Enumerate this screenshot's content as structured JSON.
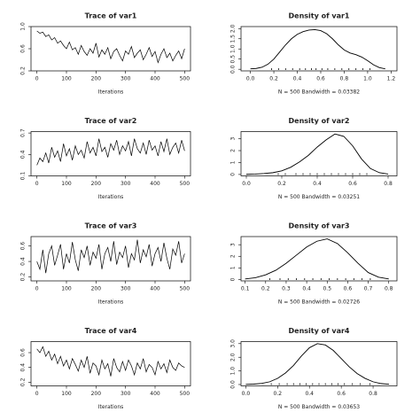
{
  "chart_data": [
    {
      "type": "line",
      "title": "Trace of var1",
      "xlabel": "Iterations",
      "x": [
        0,
        10,
        20,
        30,
        40,
        50,
        60,
        70,
        80,
        90,
        100,
        110,
        120,
        130,
        140,
        150,
        160,
        170,
        180,
        190,
        200,
        210,
        220,
        230,
        240,
        250,
        260,
        270,
        280,
        290,
        300,
        310,
        320,
        330,
        340,
        350,
        360,
        370,
        380,
        390,
        400,
        410,
        420,
        430,
        440,
        450,
        460,
        470,
        480,
        490,
        500
      ],
      "values": [
        0.92,
        0.88,
        0.9,
        0.82,
        0.85,
        0.76,
        0.8,
        0.7,
        0.74,
        0.66,
        0.6,
        0.72,
        0.58,
        0.62,
        0.5,
        0.66,
        0.55,
        0.48,
        0.6,
        0.52,
        0.7,
        0.45,
        0.58,
        0.5,
        0.62,
        0.42,
        0.55,
        0.6,
        0.48,
        0.38,
        0.56,
        0.5,
        0.64,
        0.44,
        0.52,
        0.58,
        0.4,
        0.5,
        0.62,
        0.46,
        0.55,
        0.35,
        0.5,
        0.6,
        0.44,
        0.52,
        0.38,
        0.48,
        0.56,
        0.42,
        0.6
      ],
      "xlim": [
        -20,
        520
      ],
      "xticks": [
        0,
        100,
        200,
        300,
        400,
        500
      ],
      "ylim": [
        0.2,
        1.0
      ],
      "yticks": [
        0.2,
        0.6,
        {
          "value": 1.0,
          "label": "1.0"
        }
      ],
      "color": "#000000"
    },
    {
      "type": "density",
      "title": "Density of var1",
      "xlabel": "N = 500   Bandwidth = 0.03382",
      "x": [
        0.0,
        0.05,
        0.1,
        0.15,
        0.2,
        0.25,
        0.3,
        0.35,
        0.4,
        0.45,
        0.5,
        0.55,
        0.6,
        0.65,
        0.7,
        0.75,
        0.8,
        0.85,
        0.9,
        0.95,
        1.0,
        1.05,
        1.1,
        1.15
      ],
      "values": [
        0.02,
        0.04,
        0.1,
        0.25,
        0.5,
        0.85,
        1.2,
        1.5,
        1.72,
        1.85,
        1.93,
        1.95,
        1.9,
        1.75,
        1.5,
        1.2,
        0.95,
        0.8,
        0.72,
        0.6,
        0.42,
        0.22,
        0.08,
        0.02
      ],
      "rug": [
        0.18,
        0.24,
        0.3,
        0.36,
        0.42,
        0.47,
        0.52,
        0.56,
        0.61,
        0.66,
        0.72,
        0.78,
        0.84,
        0.9,
        0.96,
        1.02
      ],
      "xlim": [
        -0.08,
        1.25
      ],
      "xticks": [
        {
          "value": 0.0,
          "label": "0.0"
        },
        0.2,
        0.4,
        0.6,
        0.8,
        {
          "value": 1.0,
          "label": "1.0"
        },
        1.2
      ],
      "ylim": [
        -0.08,
        2.1
      ],
      "yticks": [
        {
          "value": 0.0,
          "label": "0.0"
        },
        0.5,
        {
          "value": 1.0,
          "label": "1.0"
        },
        1.5,
        {
          "value": 2.0,
          "label": "2.0"
        }
      ],
      "color": "#000000"
    },
    {
      "type": "line",
      "title": "Trace of var2",
      "xlabel": "Iterations",
      "x": [
        0,
        10,
        20,
        30,
        40,
        50,
        60,
        70,
        80,
        90,
        100,
        110,
        120,
        130,
        140,
        150,
        160,
        170,
        180,
        190,
        200,
        210,
        220,
        230,
        240,
        250,
        260,
        270,
        280,
        290,
        300,
        310,
        320,
        330,
        340,
        350,
        360,
        370,
        380,
        390,
        400,
        410,
        420,
        430,
        440,
        450,
        460,
        470,
        480,
        490,
        500
      ],
      "values": [
        0.25,
        0.35,
        0.3,
        0.42,
        0.28,
        0.5,
        0.36,
        0.45,
        0.3,
        0.55,
        0.38,
        0.48,
        0.32,
        0.52,
        0.4,
        0.46,
        0.35,
        0.58,
        0.42,
        0.5,
        0.38,
        0.62,
        0.44,
        0.5,
        0.36,
        0.55,
        0.46,
        0.6,
        0.4,
        0.52,
        0.45,
        0.58,
        0.38,
        0.62,
        0.48,
        0.42,
        0.56,
        0.4,
        0.6,
        0.46,
        0.52,
        0.38,
        0.58,
        0.44,
        0.62,
        0.4,
        0.5,
        0.56,
        0.42,
        0.6,
        0.45
      ],
      "xlim": [
        -20,
        520
      ],
      "xticks": [
        0,
        100,
        200,
        300,
        400,
        500
      ],
      "ylim": [
        0.1,
        0.72
      ],
      "yticks": [
        0.1,
        0.4,
        0.7
      ],
      "color": "#000000"
    },
    {
      "type": "density",
      "title": "Density of var2",
      "xlabel": "N = 500   Bandwidth = 0.03251",
      "x": [
        0.0,
        0.05,
        0.1,
        0.15,
        0.2,
        0.25,
        0.3,
        0.35,
        0.4,
        0.45,
        0.5,
        0.55,
        0.6,
        0.65,
        0.7,
        0.75,
        0.8
      ],
      "values": [
        0.01,
        0.03,
        0.08,
        0.15,
        0.3,
        0.6,
        1.05,
        1.6,
        2.3,
        2.9,
        3.4,
        3.2,
        2.4,
        1.3,
        0.5,
        0.15,
        0.03
      ],
      "rug": [
        0.18,
        0.22,
        0.28,
        0.32,
        0.36,
        0.4,
        0.44,
        0.48,
        0.52,
        0.56,
        0.6,
        0.64,
        0.68
      ],
      "xlim": [
        -0.03,
        0.85
      ],
      "xticks": [
        {
          "value": 0.0,
          "label": "0.0"
        },
        0.2,
        0.4,
        0.6,
        0.8
      ],
      "ylim": [
        -0.12,
        3.6
      ],
      "yticks": [
        0,
        1,
        2,
        3
      ],
      "color": "#000000"
    },
    {
      "type": "line",
      "title": "Trace of var3",
      "xlabel": "Iterations",
      "x": [
        0,
        10,
        20,
        30,
        40,
        50,
        60,
        70,
        80,
        90,
        100,
        110,
        120,
        130,
        140,
        150,
        160,
        170,
        180,
        190,
        200,
        210,
        220,
        230,
        240,
        250,
        260,
        270,
        280,
        290,
        300,
        310,
        320,
        330,
        340,
        350,
        360,
        370,
        380,
        390,
        400,
        410,
        420,
        430,
        440,
        450,
        460,
        470,
        480,
        490,
        500
      ],
      "values": [
        0.4,
        0.3,
        0.55,
        0.25,
        0.5,
        0.6,
        0.35,
        0.48,
        0.62,
        0.3,
        0.5,
        0.38,
        0.65,
        0.42,
        0.28,
        0.55,
        0.45,
        0.6,
        0.35,
        0.52,
        0.44,
        0.62,
        0.3,
        0.5,
        0.58,
        0.4,
        0.66,
        0.36,
        0.52,
        0.45,
        0.6,
        0.32,
        0.5,
        0.42,
        0.68,
        0.38,
        0.55,
        0.46,
        0.62,
        0.34,
        0.5,
        0.58,
        0.4,
        0.64,
        0.44,
        0.3,
        0.56,
        0.48,
        0.66,
        0.38,
        0.5
      ],
      "xlim": [
        -20,
        520
      ],
      "xticks": [
        0,
        100,
        200,
        300,
        400,
        500
      ],
      "ylim": [
        0.15,
        0.72
      ],
      "yticks": [
        0.2,
        0.4,
        0.6
      ],
      "color": "#000000"
    },
    {
      "type": "density",
      "title": "Density of var3",
      "xlabel": "N = 500   Bandwidth = 0.02726",
      "x": [
        0.1,
        0.15,
        0.2,
        0.25,
        0.3,
        0.35,
        0.4,
        0.45,
        0.5,
        0.55,
        0.6,
        0.65,
        0.7,
        0.75,
        0.8
      ],
      "values": [
        0.05,
        0.15,
        0.4,
        0.8,
        1.4,
        2.1,
        2.8,
        3.3,
        3.5,
        3.1,
        2.3,
        1.4,
        0.6,
        0.2,
        0.05
      ],
      "rug": [
        0.22,
        0.27,
        0.31,
        0.35,
        0.39,
        0.43,
        0.47,
        0.51,
        0.55,
        0.59,
        0.63,
        0.67,
        0.71
      ],
      "xlim": [
        0.08,
        0.84
      ],
      "xticks": [
        0.1,
        0.2,
        0.3,
        0.4,
        0.5,
        0.6,
        0.7,
        0.8
      ],
      "ylim": [
        -0.12,
        3.7
      ],
      "yticks": [
        0,
        1,
        2,
        3
      ],
      "color": "#000000"
    },
    {
      "type": "line",
      "title": "Trace of var4",
      "xlabel": "Iterations",
      "x": [
        0,
        10,
        20,
        30,
        40,
        50,
        60,
        70,
        80,
        90,
        100,
        110,
        120,
        130,
        140,
        150,
        160,
        170,
        180,
        190,
        200,
        210,
        220,
        230,
        240,
        250,
        260,
        270,
        280,
        290,
        300,
        310,
        320,
        330,
        340,
        350,
        360,
        370,
        380,
        390,
        400,
        410,
        420,
        430,
        440,
        450,
        460,
        470,
        480,
        490,
        500
      ],
      "values": [
        0.65,
        0.6,
        0.68,
        0.55,
        0.62,
        0.5,
        0.58,
        0.45,
        0.55,
        0.42,
        0.5,
        0.38,
        0.52,
        0.44,
        0.35,
        0.5,
        0.4,
        0.55,
        0.32,
        0.46,
        0.42,
        0.3,
        0.5,
        0.38,
        0.45,
        0.28,
        0.52,
        0.4,
        0.34,
        0.48,
        0.36,
        0.5,
        0.42,
        0.3,
        0.46,
        0.38,
        0.52,
        0.34,
        0.44,
        0.4,
        0.3,
        0.48,
        0.38,
        0.45,
        0.33,
        0.5,
        0.4,
        0.36,
        0.46,
        0.42,
        0.4
      ],
      "xlim": [
        -20,
        520
      ],
      "xticks": [
        0,
        100,
        200,
        300,
        400,
        500
      ],
      "ylim": [
        0.15,
        0.75
      ],
      "yticks": [
        0.2,
        0.4,
        0.6
      ],
      "color": "#000000"
    },
    {
      "type": "density",
      "title": "Density of var4",
      "xlabel": "N = 500   Bandwidth = 0.03653",
      "x": [
        0.0,
        0.05,
        0.1,
        0.15,
        0.2,
        0.25,
        0.3,
        0.35,
        0.4,
        0.45,
        0.5,
        0.55,
        0.6,
        0.65,
        0.7,
        0.75,
        0.8,
        0.85,
        0.9
      ],
      "values": [
        0.01,
        0.03,
        0.08,
        0.2,
        0.45,
        0.85,
        1.4,
        2.1,
        2.7,
        3.0,
        2.9,
        2.5,
        1.9,
        1.3,
        0.8,
        0.45,
        0.2,
        0.07,
        0.02
      ],
      "rug": [
        0.16,
        0.21,
        0.26,
        0.3,
        0.34,
        0.38,
        0.42,
        0.46,
        0.5,
        0.54,
        0.58,
        0.62,
        0.67,
        0.72,
        0.78
      ],
      "xlim": [
        -0.03,
        0.95
      ],
      "xticks": [
        {
          "value": 0.0,
          "label": "0.0"
        },
        0.2,
        0.4,
        0.6,
        0.8
      ],
      "ylim": [
        -0.1,
        3.15
      ],
      "yticks": [
        {
          "value": 0.0,
          "label": "0.0"
        },
        {
          "value": 1.0,
          "label": "1.0"
        },
        {
          "value": 2.0,
          "label": "2.0"
        },
        {
          "value": 3.0,
          "label": "3.0"
        }
      ],
      "color": "#000000"
    }
  ]
}
